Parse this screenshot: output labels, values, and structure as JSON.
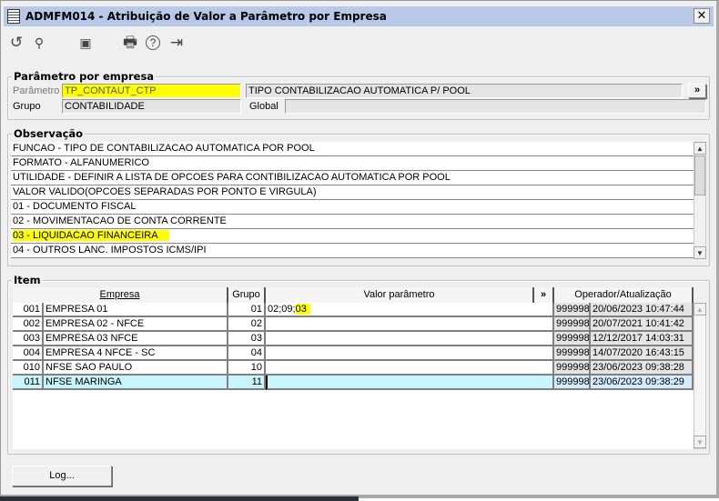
{
  "window": {
    "title": "ADMFM014 - Atribuição de Valor a Parâmetro por Empresa",
    "close": "✕"
  },
  "toolbar": {
    "undo": "↺",
    "search": "🔍",
    "save": "💾",
    "print": "🖶",
    "help": "?",
    "exit": "⇥"
  },
  "parametro": {
    "legend": "Parâmetro por empresa",
    "param_label": "Parâmetro",
    "param_value": "TP_CONTAUT_CTP",
    "param_desc": "TIPO CONTABILIZACAO AUTOMATICA P/ POOL",
    "expand": "»",
    "grupo_label": "Grupo",
    "grupo_value": "CONTABILIDADE",
    "global_label": "Global",
    "global_value": ""
  },
  "observacao": {
    "legend": "Observação",
    "lines": [
      "FUNCAO - TIPO DE CONTABILIZACAO AUTOMATICA POR POOL",
      "FORMATO - ALFANUMERICO",
      "UTILIDADE - DEFINIR A LISTA DE OPCOES PARA CONTIBILIZACAO AUTOMATICA POR POOL",
      "VALOR VALIDO(OPCOES SEPARADAS POR PONTO E VIRGULA)",
      "01 - DOCUMENTO FISCAL",
      "02 - MOVIMENTACAO DE CONTA CORRENTE",
      "03 - LIQUIDACAO FINANCEIRA",
      "04 - OUTROS LANC. IMPOSTOS ICMS/IPI"
    ],
    "highlight_index": 6
  },
  "item": {
    "legend": "Item",
    "headers": {
      "empresa": "Empresa",
      "grupo": "Grupo",
      "valor": "Valor parâmetro",
      "expand": "»",
      "operador": "Operador/Atualização"
    },
    "rows": [
      {
        "code": "001",
        "name": "EMPRESA 01",
        "grupo": "01",
        "valor_pre": "02;09;",
        "valor_hl": "03",
        "op": "999998",
        "date": "20/06/2023 10:47:44"
      },
      {
        "code": "002",
        "name": "EMPRESA 02 - NFCE",
        "grupo": "02",
        "valor_pre": "",
        "valor_hl": "",
        "op": "999998",
        "date": "20/07/2021 10:41:42"
      },
      {
        "code": "003",
        "name": "EMPRESA 03 NFCE",
        "grupo": "03",
        "valor_pre": "",
        "valor_hl": "",
        "op": "999998",
        "date": "12/12/2017 14:03:31"
      },
      {
        "code": "004",
        "name": "EMPRESA 4 NFCE - SC",
        "grupo": "04",
        "valor_pre": "",
        "valor_hl": "",
        "op": "999998",
        "date": "14/07/2020 16:43:15"
      },
      {
        "code": "010",
        "name": "NFSE SAO PAULO",
        "grupo": "10",
        "valor_pre": "",
        "valor_hl": "",
        "op": "999998",
        "date": "23/06/2023 09:38:28"
      },
      {
        "code": "011",
        "name": "NFSE MARINGA",
        "grupo": "11",
        "valor_pre": "",
        "valor_hl": "",
        "op": "999998",
        "date": "23/06/2023 09:38:29"
      }
    ],
    "selected_index": 5
  },
  "footer": {
    "log_button": "Log..."
  },
  "colors": {
    "title_bar": "#b7c8e8",
    "highlight": "#ffff00",
    "selected_row": "#c8f4fc"
  }
}
